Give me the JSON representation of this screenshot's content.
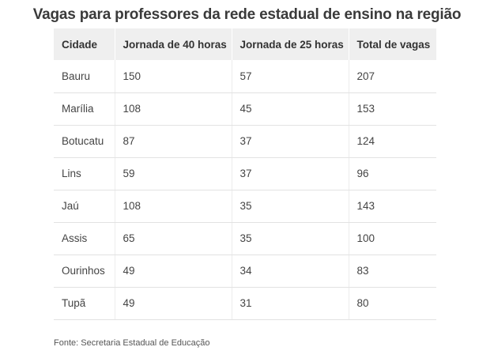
{
  "title": "Vagas para professores da rede estadual de ensino na região",
  "table": {
    "headers": [
      "Cidade",
      "Jornada de 40 horas",
      "Jornada de 25 horas",
      "Total de vagas"
    ],
    "rows": [
      [
        "Bauru",
        "150",
        "57",
        "207"
      ],
      [
        "Marília",
        "108",
        "45",
        "153"
      ],
      [
        "Botucatu",
        "87",
        "37",
        "124"
      ],
      [
        "Lins",
        "59",
        "37",
        "96"
      ],
      [
        "Jaú",
        "108",
        "35",
        "143"
      ],
      [
        "Assis",
        "65",
        "35",
        "100"
      ],
      [
        "Ourinhos",
        "49",
        "34",
        "83"
      ],
      [
        "Tupã",
        "49",
        "31",
        "80"
      ]
    ]
  },
  "source": "Fonte: Secretaria Estadual de Educação"
}
